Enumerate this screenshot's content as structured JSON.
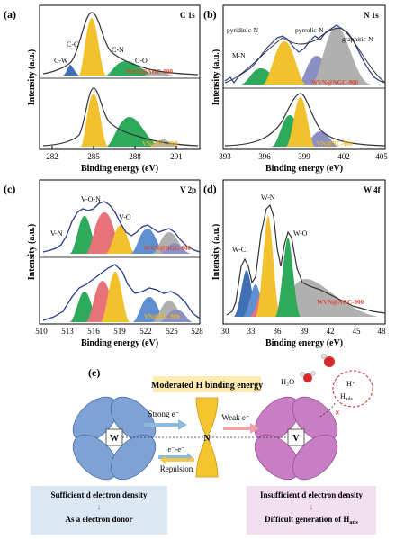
{
  "chart_data": [
    {
      "type": "area",
      "panel": "(a)",
      "core_level": "C 1s",
      "xlabel": "Binding energy (eV)",
      "ylabel": "Intensity (a.u.)",
      "xlim": [
        281,
        292.5
      ],
      "xticks": [
        "282",
        "285",
        "288",
        "291"
      ],
      "top": {
        "sample": "WVN@NGC-900",
        "peaks": [
          {
            "label": "C-W",
            "center": 283.3,
            "color": "#3f6fb5"
          },
          {
            "label": "C-C",
            "center": 284.6,
            "color": "#f2c12e"
          },
          {
            "label": "C-N",
            "center": 285.6,
            "color": "#2daa5c"
          },
          {
            "label": "C-O",
            "center": 288.3,
            "color": "#b0b0b0"
          }
        ]
      },
      "bottom": {
        "sample": "VN@NC-900"
      }
    },
    {
      "type": "area",
      "panel": "(b)",
      "core_level": "N 1s",
      "xlabel": "Binding energy (eV)",
      "ylabel": "Intensity (a.u.)",
      "xlim": [
        393,
        405
      ],
      "xticks": [
        "393",
        "396",
        "399",
        "402",
        "405"
      ],
      "top": {
        "sample": "WVN@NGC-900",
        "peaks": [
          {
            "label": "M-N",
            "center": 396.2,
            "color": "#2daa5c"
          },
          {
            "label": "pyridinic-N",
            "center": 397.7,
            "color": "#f2c12e"
          },
          {
            "label": "pyrrolic-N",
            "center": 399.2,
            "color": "#8a8fc4"
          },
          {
            "label": "graphitic-N",
            "center": 401.3,
            "color": "#b0b0b0"
          }
        ]
      },
      "bottom": {
        "sample": "VN@NC-900"
      }
    },
    {
      "type": "area",
      "panel": "(c)",
      "core_level": "V 2p",
      "xlabel": "Binding energy (eV)",
      "ylabel": "Intensity (a.u.)",
      "xlim": [
        510,
        528
      ],
      "xticks": [
        "510",
        "513",
        "516",
        "519",
        "522",
        "525",
        "528"
      ],
      "top": {
        "sample": "WVN@NGC-900",
        "peaks": [
          {
            "label": "V-N",
            "center": 513.6,
            "color": "#2daa5c"
          },
          {
            "label": "V-O-N",
            "center": 515.6,
            "color": "#e8727a"
          },
          {
            "label": "V-O",
            "center": 517.3,
            "color": "#f2c12e"
          }
        ]
      },
      "bottom": {
        "sample": "VN@NC-900"
      }
    },
    {
      "type": "area",
      "panel": "(d)",
      "core_level": "W 4f",
      "xlabel": "Binding energy (eV)",
      "ylabel": "Intensity (a.u.)",
      "xlim": [
        30,
        48
      ],
      "xticks": [
        "30",
        "33",
        "36",
        "39",
        "42",
        "45",
        "48"
      ],
      "top": {
        "sample": "WVN@NGC-900",
        "peaks": [
          {
            "label": "W-C",
            "center": 32.0,
            "color": "#3f6fb5"
          },
          {
            "label": "W-N",
            "center": 35.5,
            "color": "#f2c12e"
          },
          {
            "label": "W-O",
            "center": 37.8,
            "color": "#2daa5c"
          }
        ]
      }
    }
  ],
  "panel_e": {
    "label": "(e)",
    "banner": "Moderated H binding energy",
    "w": "W",
    "n": "N",
    "v": "V",
    "strong": "Strong e⁻",
    "weak": "Weak e⁻",
    "ee": "e⁻-e⁻",
    "repulsion": "Repulsion",
    "h2o": "H₂O",
    "hplus": "H⁺",
    "hads": "H",
    "hads_sub": "ads",
    "left_line1": "Sufficient d electron density",
    "left_line2": "As a electron donor",
    "right_line1": "Insufficient d electron density",
    "right_line2": "Difficult generation of H",
    "right_sub": "ads",
    "arrow": "↓"
  },
  "colors": {
    "yellow": "#f2c12e",
    "green": "#2daa5c",
    "blue": "#3f6fb5",
    "grey": "#b0b0b0",
    "purple": "#8a8fc4",
    "pink": "#e8727a",
    "sample_label": "#e0452f",
    "sample_label_bottom": "#f2b41e",
    "lobe_blue": "#7ea2d4",
    "lobe_pink": "#c77ec3"
  }
}
